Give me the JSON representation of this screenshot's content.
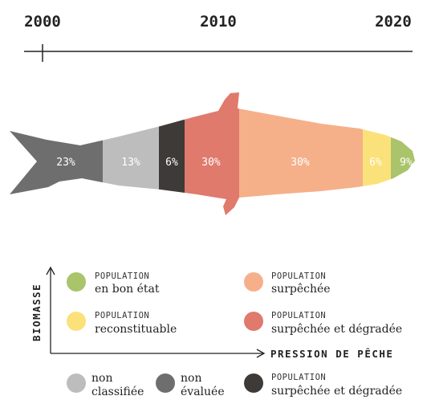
{
  "chart_data": {
    "type": "bar",
    "timeline": [
      "2000",
      "2010",
      "2020"
    ],
    "segments": [
      {
        "label": "23%",
        "value": 23,
        "color": "#6e6e6e",
        "category": "non évaluée"
      },
      {
        "label": "13%",
        "value": 13,
        "color": "#bdbdbd",
        "category": "non classifiée"
      },
      {
        "label": "6%",
        "value": 6,
        "color": "#3d3a38",
        "category": "POPULATION surpêchée et dégradée"
      },
      {
        "label": "30%",
        "value": 30,
        "color": "#df7a6c",
        "category": "POPULATION surpêchée et dégradée"
      },
      {
        "label": "30%",
        "value": 30,
        "color": "#f5b08a",
        "category": "POPULATION surpêchée"
      },
      {
        "label": "6%",
        "value": 6,
        "color": "#fbe17a",
        "category": "POPULATION reconstituable"
      },
      {
        "label": "9%",
        "value": 9,
        "color": "#a9c46b",
        "category": "POPULATION en bon état"
      }
    ],
    "legend": [
      {
        "top": "POPULATION",
        "main": "en bon état",
        "color": "#a9c46b"
      },
      {
        "top": "POPULATION",
        "main": "surpêchée",
        "color": "#f5b08a"
      },
      {
        "top": "POPULATION",
        "main": "reconstituable",
        "color": "#fbe17a"
      },
      {
        "top": "POPULATION",
        "main": "surpêchée et dégradée",
        "color": "#df7a6c"
      }
    ],
    "legend_bottom": [
      {
        "line1": "non",
        "line2": "classifiée",
        "color": "#bdbdbd"
      },
      {
        "line1": "non",
        "line2": "évaluée",
        "color": "#6e6e6e"
      },
      {
        "top": "POPULATION",
        "main": "surpêchée et dégradée",
        "color": "#3d3a38"
      }
    ],
    "ylabel": "BIOMASSE",
    "xlabel": "PRESSION DE PÊCHE"
  }
}
